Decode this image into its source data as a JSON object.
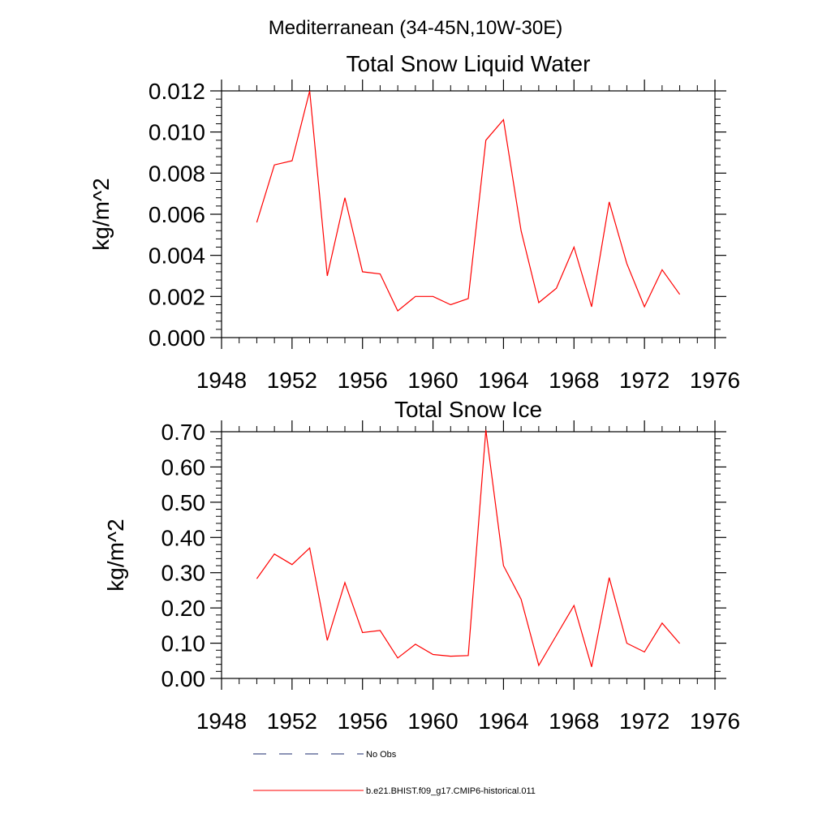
{
  "suptitle": "Mediterranean (34-45N,10W-30E)",
  "chart_data": [
    {
      "type": "line",
      "title": "Total Snow Liquid Water",
      "xlabel": "",
      "ylabel": "kg/m^2",
      "xlim": [
        1948,
        1976
      ],
      "ylim": [
        0.0,
        0.012
      ],
      "x_ticks": [
        "1948",
        "1952",
        "1956",
        "1960",
        "1964",
        "1968",
        "1972",
        "1976"
      ],
      "y_ticks": [
        "0.000",
        "0.002",
        "0.004",
        "0.006",
        "0.008",
        "0.010",
        "0.012"
      ],
      "series": [
        {
          "name": "b.e21.BHIST.f09_g17.CMIP6-historical.011",
          "color": "#ff0000",
          "x": [
            1950,
            1951,
            1952,
            1953,
            1954,
            1955,
            1956,
            1957,
            1958,
            1959,
            1960,
            1961,
            1962,
            1963,
            1964,
            1965,
            1966,
            1967,
            1968,
            1969,
            1970,
            1971,
            1972,
            1973,
            1974
          ],
          "y": [
            0.0056,
            0.0084,
            0.0086,
            0.012,
            0.003,
            0.0068,
            0.0032,
            0.0031,
            0.0013,
            0.002,
            0.002,
            0.0016,
            0.0019,
            0.0096,
            0.0106,
            0.0052,
            0.0017,
            0.0024,
            0.0044,
            0.0015,
            0.0066,
            0.0036,
            0.0015,
            0.0033,
            0.0021
          ]
        }
      ]
    },
    {
      "type": "line",
      "title": "Total Snow Ice",
      "xlabel": "",
      "ylabel": "kg/m^2",
      "xlim": [
        1948,
        1976
      ],
      "ylim": [
        0.0,
        0.7
      ],
      "x_ticks": [
        "1948",
        "1952",
        "1956",
        "1960",
        "1964",
        "1968",
        "1972",
        "1976"
      ],
      "y_ticks": [
        "0.00",
        "0.10",
        "0.20",
        "0.30",
        "0.40",
        "0.50",
        "0.60",
        "0.70"
      ],
      "series": [
        {
          "name": "b.e21.BHIST.f09_g17.CMIP6-historical.011",
          "color": "#ff0000",
          "x": [
            1950,
            1951,
            1952,
            1953,
            1954,
            1955,
            1956,
            1957,
            1958,
            1959,
            1960,
            1961,
            1962,
            1963,
            1964,
            1965,
            1966,
            1967,
            1968,
            1969,
            1970,
            1971,
            1972,
            1973,
            1974
          ],
          "y": [
            0.283,
            0.353,
            0.323,
            0.37,
            0.108,
            0.272,
            0.13,
            0.136,
            0.058,
            0.097,
            0.068,
            0.063,
            0.065,
            0.705,
            0.32,
            0.225,
            0.037,
            0.122,
            0.207,
            0.033,
            0.286,
            0.1,
            0.075,
            0.157,
            0.099
          ]
        }
      ]
    }
  ],
  "legend": {
    "placement": "bottom",
    "items": [
      {
        "label": "No Obs",
        "color": "#1a2a6c",
        "style": "dashed"
      },
      {
        "label": "b.e21.BHIST.f09_g17.CMIP6-historical.011",
        "color": "#ff0000",
        "style": "solid"
      }
    ]
  }
}
